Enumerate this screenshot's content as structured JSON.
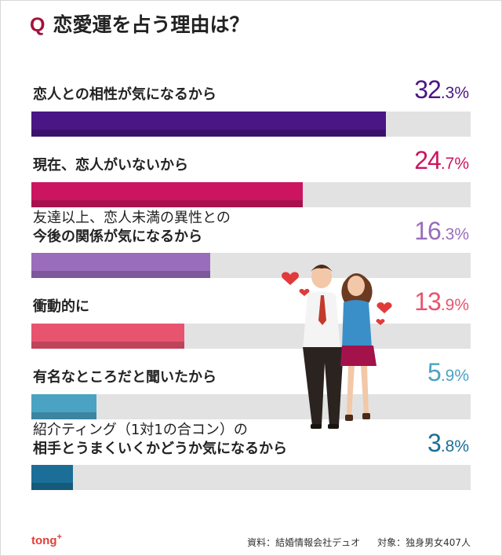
{
  "title": {
    "q": "Q",
    "text": "恋愛運を占う理由は？"
  },
  "chart_data": {
    "type": "bar",
    "title": "恋愛運を占う理由は？",
    "xlim": [
      0,
      40
    ],
    "categories": [
      "恋人との相性が気になるから",
      "現在、恋人がいないから",
      "友達以上、恋人未満の異性との今後の関係が気になるから",
      "衝動的に",
      "有名なところだと聞いたから",
      "紹介ティング（1対1の合コン）の相手とうまくいくかどうか気になるから"
    ],
    "values": [
      32.3,
      24.7,
      16.3,
      13.9,
      5.9,
      3.8
    ],
    "unit": "%"
  },
  "rows": [
    {
      "l1": "恋人との相性が気になるから",
      "l2": "",
      "int": "32",
      "dec": ".3%",
      "color": "#4a1585"
    },
    {
      "l1": "現在、恋人がいないから",
      "l2": "",
      "int": "24",
      "dec": ".7%",
      "color": "#cc1560"
    },
    {
      "l1": "友達以上、恋人未満の異性との",
      "l2": "今後の関係が気になるから",
      "int": "16",
      "dec": ".3%",
      "color": "#9a6cbc"
    },
    {
      "l1": "衝動的に",
      "l2": "",
      "int": "13",
      "dec": ".9%",
      "color": "#e8546e"
    },
    {
      "l1": "有名なところだと聞いたから",
      "l2": "",
      "int": "5",
      "dec": ".9%",
      "color": "#4aa3c2"
    },
    {
      "l1": "紹介ティング（1対1の合コン）の",
      "l2": "相手とうまくいくかどうか気になるから",
      "int": "3",
      "dec": ".8%",
      "color": "#1a6e97"
    }
  ],
  "brand": {
    "name": "tong",
    "plus": "+"
  },
  "footer": {
    "source": "資料：結婚情報会社デュオ",
    "target": "対象：独身男女407人"
  }
}
